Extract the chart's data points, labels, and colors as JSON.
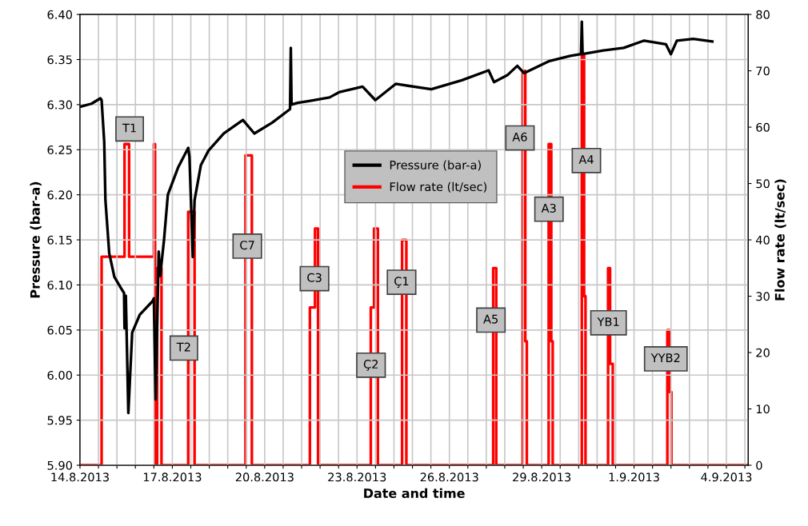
{
  "chart_data": {
    "type": "line",
    "xlabel": "Date and time",
    "ylabel": "Pressure (bar-a)",
    "y2label": "Flow rate (lt/sec)",
    "xlim": [
      "2013-08-14",
      "2013-09-04T17:00"
    ],
    "xticks": [
      {
        "value": "2013-08-14",
        "label": "14.8.2013"
      },
      {
        "value": "2013-08-14T14:24",
        "label": null
      },
      {
        "value": "2013-08-15T04:48",
        "label": null
      },
      {
        "value": "2013-08-15T19:12",
        "label": null
      },
      {
        "value": "2013-08-16T09:36",
        "label": null
      },
      {
        "value": "2013-08-17",
        "label": "17.8.2013"
      },
      {
        "value": "2013-08-17T14:24",
        "label": null
      },
      {
        "value": "2013-08-18T04:48",
        "label": null
      },
      {
        "value": "2013-08-18T19:12",
        "label": null
      },
      {
        "value": "2013-08-19T09:36",
        "label": null
      },
      {
        "value": "2013-08-20",
        "label": "20.8.2013"
      },
      {
        "value": "2013-08-20T14:24",
        "label": null
      },
      {
        "value": "2013-08-21T04:48",
        "label": null
      },
      {
        "value": "2013-08-21T19:12",
        "label": null
      },
      {
        "value": "2013-08-22T09:36",
        "label": null
      },
      {
        "value": "2013-08-23",
        "label": "23.8.2013"
      },
      {
        "value": "2013-08-23T14:24",
        "label": null
      },
      {
        "value": "2013-08-24T04:48",
        "label": null
      },
      {
        "value": "2013-08-24T19:12",
        "label": null
      },
      {
        "value": "2013-08-25T09:36",
        "label": null
      },
      {
        "value": "2013-08-26",
        "label": "26.8.2013"
      },
      {
        "value": "2013-08-26T14:24",
        "label": null
      },
      {
        "value": "2013-08-27T04:48",
        "label": null
      },
      {
        "value": "2013-08-27T19:12",
        "label": null
      },
      {
        "value": "2013-08-28T09:36",
        "label": null
      },
      {
        "value": "2013-08-29",
        "label": "29.8.2013"
      },
      {
        "value": "2013-08-29T14:24",
        "label": null
      },
      {
        "value": "2013-08-30T04:48",
        "label": null
      },
      {
        "value": "2013-08-30T19:12",
        "label": null
      },
      {
        "value": "2013-08-31T09:36",
        "label": null
      },
      {
        "value": "2013-09-01",
        "label": "1.9.2013"
      },
      {
        "value": "2013-09-01T14:24",
        "label": null
      },
      {
        "value": "2013-09-02T04:48",
        "label": null
      },
      {
        "value": "2013-09-02T19:12",
        "label": null
      },
      {
        "value": "2013-09-03T09:36",
        "label": null
      },
      {
        "value": "2013-09-04",
        "label": "4.9.2013"
      },
      {
        "value": "2013-09-04T14:24",
        "label": null
      }
    ],
    "ylim": [
      5.9,
      6.4
    ],
    "yticks": [
      {
        "value": 5.9,
        "label": "5.90"
      },
      5.95,
      {
        "value": 6.0,
        "label": "6.00"
      },
      6.05,
      {
        "value": 6.1,
        "label": "6.10"
      },
      6.15,
      {
        "value": 6.2,
        "label": "6.20"
      },
      6.25,
      {
        "value": 6.3,
        "label": "6.30"
      },
      6.35,
      {
        "value": 6.4,
        "label": "6.40"
      }
    ],
    "y2lim": [
      0,
      80
    ],
    "y2ticks": [
      0,
      10,
      20,
      30,
      40,
      50,
      60,
      70,
      80
    ],
    "grid": true,
    "legend": "top",
    "series": [
      {
        "name": "Pressure (bar-a)",
        "color": "#000000",
        "x": [
          "2013-08-14T01:01",
          "2013-08-14T08:56",
          "2013-08-14T15:54",
          "2013-08-14T16:51",
          "2013-08-14T18:53",
          "2013-08-14T19:50",
          "2013-08-14T22:48",
          "2013-08-15T02:48",
          "2013-08-15T07:45",
          "2013-08-15T10:22",
          "2013-08-15T10:43",
          "2013-08-15T11:44",
          "2013-08-15T13:42",
          "2013-08-15T16:41",
          "2013-08-15T22:38",
          "2013-08-16T08:34",
          "2013-08-16T09:36",
          "2013-08-16T10:58",
          "2013-08-16T13:21",
          "2013-08-16T14:31",
          "2013-08-16T17:31",
          "2013-08-16T20:30",
          "2013-08-17T04:25",
          "2013-08-17T12:23",
          "2013-08-17T13:21",
          "2013-08-17T15:58",
          "2013-08-17T17:20",
          "2013-08-17T22:16",
          "2013-08-18T04:13",
          "2013-08-18T16:08",
          "2013-08-19T07:02",
          "2013-08-19T15:58",
          "2013-08-20T05:54",
          "2013-08-20T19:46",
          "2013-08-20T20:22",
          "2013-08-20T20:57",
          "2013-08-21T01:44",
          "2013-08-21T10:39",
          "2013-08-22T02:34",
          "2013-08-22T10:29",
          "2013-08-23T04:21",
          "2013-08-23T14:18",
          "2013-08-24T06:08",
          "2013-08-25T09:56",
          "2013-08-26T09:46",
          "2013-08-27T06:36",
          "2013-08-27T10:46",
          "2013-08-27T21:30",
          "2013-08-28T04:57",
          "2013-08-28T10:15",
          "2013-08-29T05:25",
          "2013-08-29T22:21",
          "2013-08-30T06:40",
          "2013-08-30T07:16",
          "2013-08-30T07:52",
          "2013-08-31T00:00",
          "2013-08-31T15:55",
          "2013-09-01T07:52",
          "2013-09-02T00:48",
          "2013-09-02T04:42",
          "2013-09-02T09:22",
          "2013-09-02T22:09",
          "2013-09-03T13:02"
        ],
        "values": [
          6.298,
          6.301,
          6.307,
          6.305,
          6.259,
          6.194,
          6.135,
          6.109,
          6.097,
          6.091,
          6.052,
          6.088,
          5.958,
          6.047,
          6.067,
          6.082,
          6.085,
          5.973,
          6.137,
          6.11,
          6.15,
          6.2,
          6.23,
          6.252,
          6.242,
          6.131,
          6.194,
          6.233,
          6.249,
          6.268,
          6.283,
          6.268,
          6.28,
          6.295,
          6.363,
          6.3,
          6.302,
          6.304,
          6.308,
          6.314,
          6.32,
          6.305,
          6.323,
          6.317,
          6.327,
          6.338,
          6.325,
          6.333,
          6.343,
          6.335,
          6.348,
          6.354,
          6.356,
          6.392,
          6.356,
          6.36,
          6.363,
          6.371,
          6.367,
          6.356,
          6.371,
          6.373,
          6.37
        ]
      },
      {
        "name": "Flow rate (lt/sec)",
        "type": "step",
        "axis": "y2",
        "color": "#ff0000",
        "x": [
          "2013-08-14T00:00",
          "2013-08-14T16:51",
          "2013-08-15T10:43",
          "2013-08-15T14:18",
          "2013-08-16T09:36",
          "2013-08-16T10:32",
          "2013-08-16T12:09",
          "2013-08-16T15:33",
          "2013-08-17T12:23",
          "2013-08-17T17:20",
          "2013-08-19T09:03",
          "2013-08-19T14:00",
          "2013-08-21T11:15",
          "2013-08-21T15:14",
          "2013-08-21T17:37",
          "2013-08-23T10:44",
          "2013-08-23T13:16",
          "2013-08-23T16:15",
          "2013-08-24T11:08",
          "2013-08-24T14:28",
          "2013-08-27T10:11",
          "2013-08-27T12:35",
          "2013-08-28T09:10",
          "2013-08-28T11:12",
          "2013-08-28T12:23",
          "2013-08-29T05:25",
          "2013-08-29T07:27",
          "2013-08-29T08:34",
          "2013-08-30T07:16",
          "2013-08-30T09:03",
          "2013-08-30T10:08",
          "2013-08-31T03:45",
          "2013-08-31T05:18",
          "2013-08-31T07:24",
          "2013-09-02T01:58",
          "2013-09-02T03:27",
          "2013-09-02T05:07",
          "2013-09-04T17:00"
        ],
        "values": [
          0,
          37,
          57,
          37,
          57,
          0,
          35,
          0,
          45,
          0,
          55,
          0,
          28,
          42,
          0,
          28,
          42,
          0,
          40,
          0,
          35,
          0,
          70,
          22,
          0,
          57,
          22,
          0,
          73,
          30,
          0,
          35,
          18,
          0,
          24,
          13,
          0,
          0
        ]
      }
    ],
    "annotations": [
      {
        "text": "T1",
        "x": "2013-08-15T14:43",
        "y": 6.273
      },
      {
        "text": "T2",
        "x": "2013-08-17T09:00",
        "y": 6.03
      },
      {
        "text": "C7",
        "x": "2013-08-19T10:25",
        "y": 6.143
      },
      {
        "text": "C3",
        "x": "2013-08-21T14:50",
        "y": 6.107
      },
      {
        "text": "Ç2",
        "x": "2013-08-23T10:54",
        "y": 6.011
      },
      {
        "text": "Ç1",
        "x": "2013-08-24T10:44",
        "y": 6.103
      },
      {
        "text": "A5",
        "x": "2013-08-27T08:24",
        "y": 6.061
      },
      {
        "text": "A6",
        "x": "2013-08-28T07:02",
        "y": 6.263
      },
      {
        "text": "A3",
        "x": "2013-08-29T05:40",
        "y": 6.184
      },
      {
        "text": "A4",
        "x": "2013-08-30T10:51",
        "y": 6.238
      },
      {
        "text": "YB1",
        "x": "2013-08-31T04:06",
        "y": 6.058
      },
      {
        "text": "YYB2",
        "x": "2013-09-02T00:46",
        "y": 6.018
      }
    ]
  }
}
